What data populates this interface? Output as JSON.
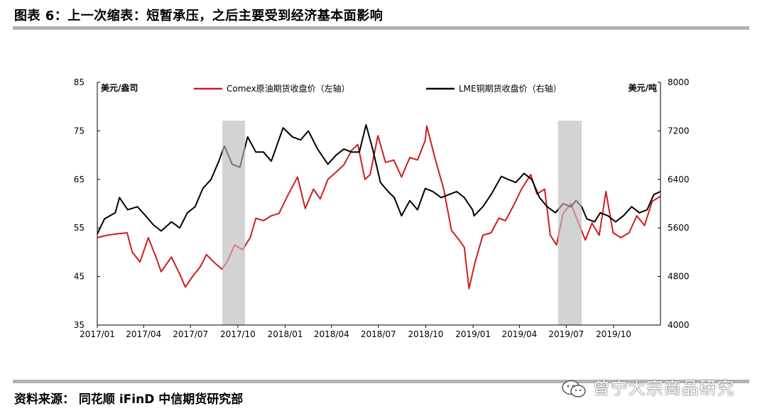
{
  "figure": {
    "title": "图表 6：上一次缩表：短暂承压，之后主要受到经济基本面影响",
    "source": "资料来源： 同花顺 iFinD 中信期货研究部",
    "watermark": "曾宁大宗商品研究"
  },
  "chart_data": {
    "type": "line",
    "x_range": [
      "2017-01-01",
      "2019-12-31"
    ],
    "x_ticks": [
      "2017/01",
      "2017/04",
      "2017/07",
      "2017/10",
      "2018/01",
      "2018/04",
      "2018/07",
      "2018/10",
      "2019/01",
      "2019/04",
      "2019/07",
      "2019/10"
    ],
    "left_axis": {
      "unit": "美元/盎司",
      "range": [
        35,
        85
      ],
      "ticks": [
        "35",
        "45",
        "55",
        "65",
        "75",
        "85"
      ]
    },
    "right_axis": {
      "unit": "美元/吨",
      "range": [
        4000,
        8000
      ],
      "ticks": [
        "4000",
        "4800",
        "5600",
        "6400",
        "7200",
        "8000"
      ]
    },
    "shaded_periods": [
      {
        "start": "2017-09-01",
        "end": "2017-10-15"
      },
      {
        "start": "2019-06-15",
        "end": "2019-07-31"
      }
    ],
    "legend_placement": "top",
    "series": [
      {
        "name": "Comex原油期货收盘价（左轴）",
        "axis": "left",
        "color": "#cc1f1f",
        "points": [
          [
            "2017-01-01",
            53.0
          ],
          [
            "2017-01-20",
            53.5
          ],
          [
            "2017-02-10",
            53.8
          ],
          [
            "2017-02-28",
            54.0
          ],
          [
            "2017-03-10",
            50.0
          ],
          [
            "2017-03-25",
            48.0
          ],
          [
            "2017-04-10",
            53.0
          ],
          [
            "2017-04-25",
            49.0
          ],
          [
            "2017-05-05",
            46.0
          ],
          [
            "2017-05-25",
            49.0
          ],
          [
            "2017-06-10",
            45.5
          ],
          [
            "2017-06-21",
            42.8
          ],
          [
            "2017-07-05",
            45.0
          ],
          [
            "2017-07-20",
            47.0
          ],
          [
            "2017-08-01",
            49.5
          ],
          [
            "2017-08-15",
            48.0
          ],
          [
            "2017-08-31",
            46.5
          ],
          [
            "2017-09-10",
            48.0
          ],
          [
            "2017-09-25",
            51.5
          ],
          [
            "2017-10-10",
            50.5
          ],
          [
            "2017-10-25",
            53.0
          ],
          [
            "2017-11-05",
            57.0
          ],
          [
            "2017-11-20",
            56.5
          ],
          [
            "2017-12-05",
            57.5
          ],
          [
            "2017-12-20",
            58.0
          ],
          [
            "2018-01-05",
            61.5
          ],
          [
            "2018-01-25",
            65.5
          ],
          [
            "2018-02-09",
            59.0
          ],
          [
            "2018-02-25",
            63.0
          ],
          [
            "2018-03-10",
            61.0
          ],
          [
            "2018-03-25",
            65.0
          ],
          [
            "2018-04-10",
            66.5
          ],
          [
            "2018-04-25",
            68.0
          ],
          [
            "2018-05-10",
            71.0
          ],
          [
            "2018-05-22",
            72.2
          ],
          [
            "2018-06-05",
            65.0
          ],
          [
            "2018-06-15",
            66.0
          ],
          [
            "2018-06-30",
            74.0
          ],
          [
            "2018-07-15",
            68.5
          ],
          [
            "2018-07-31",
            69.0
          ],
          [
            "2018-08-15",
            65.5
          ],
          [
            "2018-08-31",
            69.5
          ],
          [
            "2018-09-15",
            69.0
          ],
          [
            "2018-09-30",
            73.0
          ],
          [
            "2018-10-03",
            76.0
          ],
          [
            "2018-10-20",
            69.0
          ],
          [
            "2018-11-05",
            63.0
          ],
          [
            "2018-11-20",
            54.5
          ],
          [
            "2018-12-05",
            52.5
          ],
          [
            "2018-12-15",
            51.0
          ],
          [
            "2018-12-24",
            42.5
          ],
          [
            "2019-01-05",
            48.0
          ],
          [
            "2019-01-20",
            53.5
          ],
          [
            "2019-02-05",
            54.0
          ],
          [
            "2019-02-20",
            57.0
          ],
          [
            "2019-03-05",
            56.5
          ],
          [
            "2019-03-20",
            59.5
          ],
          [
            "2019-04-05",
            63.0
          ],
          [
            "2019-04-23",
            66.0
          ],
          [
            "2019-05-05",
            62.0
          ],
          [
            "2019-05-20",
            63.0
          ],
          [
            "2019-05-31",
            53.5
          ],
          [
            "2019-06-12",
            51.5
          ],
          [
            "2019-06-25",
            58.0
          ],
          [
            "2019-07-10",
            60.0
          ],
          [
            "2019-07-25",
            56.0
          ],
          [
            "2019-08-07",
            52.5
          ],
          [
            "2019-08-20",
            56.0
          ],
          [
            "2019-09-03",
            53.5
          ],
          [
            "2019-09-16",
            62.5
          ],
          [
            "2019-09-30",
            54.0
          ],
          [
            "2019-10-15",
            53.0
          ],
          [
            "2019-10-31",
            54.0
          ],
          [
            "2019-11-15",
            57.5
          ],
          [
            "2019-11-30",
            55.5
          ],
          [
            "2019-12-15",
            60.5
          ],
          [
            "2019-12-31",
            61.5
          ]
        ]
      },
      {
        "name": "LME铜期货收盘价（右轴）",
        "axis": "right",
        "color": "#000000",
        "points": [
          [
            "2017-01-01",
            5500
          ],
          [
            "2017-01-15",
            5750
          ],
          [
            "2017-02-05",
            5850
          ],
          [
            "2017-02-13",
            6100
          ],
          [
            "2017-03-01",
            5900
          ],
          [
            "2017-03-20",
            5950
          ],
          [
            "2017-04-05",
            5800
          ],
          [
            "2017-04-20",
            5650
          ],
          [
            "2017-05-05",
            5550
          ],
          [
            "2017-05-25",
            5700
          ],
          [
            "2017-06-10",
            5600
          ],
          [
            "2017-06-25",
            5850
          ],
          [
            "2017-07-10",
            5950
          ],
          [
            "2017-07-25",
            6250
          ],
          [
            "2017-08-10",
            6400
          ],
          [
            "2017-08-25",
            6700
          ],
          [
            "2017-09-05",
            6950
          ],
          [
            "2017-09-20",
            6650
          ],
          [
            "2017-10-05",
            6600
          ],
          [
            "2017-10-20",
            7100
          ],
          [
            "2017-11-05",
            6850
          ],
          [
            "2017-11-20",
            6850
          ],
          [
            "2017-12-05",
            6700
          ],
          [
            "2017-12-28",
            7250
          ],
          [
            "2018-01-15",
            7100
          ],
          [
            "2018-01-31",
            7050
          ],
          [
            "2018-02-15",
            7200
          ],
          [
            "2018-03-05",
            6900
          ],
          [
            "2018-03-25",
            6650
          ],
          [
            "2018-04-10",
            6800
          ],
          [
            "2018-04-25",
            6900
          ],
          [
            "2018-05-10",
            6850
          ],
          [
            "2018-05-25",
            6850
          ],
          [
            "2018-06-07",
            7300
          ],
          [
            "2018-06-20",
            6900
          ],
          [
            "2018-07-05",
            6350
          ],
          [
            "2018-07-20",
            6200
          ],
          [
            "2018-08-01",
            6100
          ],
          [
            "2018-08-15",
            5800
          ],
          [
            "2018-08-31",
            6050
          ],
          [
            "2018-09-15",
            5900
          ],
          [
            "2018-09-30",
            6250
          ],
          [
            "2018-10-15",
            6200
          ],
          [
            "2018-10-31",
            6100
          ],
          [
            "2018-11-15",
            6150
          ],
          [
            "2018-11-30",
            6200
          ],
          [
            "2018-12-15",
            6100
          ],
          [
            "2018-12-31",
            5900
          ],
          [
            "2019-01-03",
            5800
          ],
          [
            "2019-01-20",
            5950
          ],
          [
            "2019-02-05",
            6150
          ],
          [
            "2019-02-25",
            6450
          ],
          [
            "2019-03-10",
            6400
          ],
          [
            "2019-03-25",
            6350
          ],
          [
            "2019-04-10",
            6500
          ],
          [
            "2019-04-25",
            6400
          ],
          [
            "2019-05-10",
            6100
          ],
          [
            "2019-05-25",
            5950
          ],
          [
            "2019-06-10",
            5850
          ],
          [
            "2019-06-25",
            6000
          ],
          [
            "2019-07-10",
            5950
          ],
          [
            "2019-07-20",
            6050
          ],
          [
            "2019-07-31",
            5950
          ],
          [
            "2019-08-10",
            5750
          ],
          [
            "2019-08-25",
            5700
          ],
          [
            "2019-09-05",
            5850
          ],
          [
            "2019-09-20",
            5800
          ],
          [
            "2019-10-05",
            5700
          ],
          [
            "2019-10-20",
            5800
          ],
          [
            "2019-11-05",
            5950
          ],
          [
            "2019-11-20",
            5850
          ],
          [
            "2019-12-05",
            5900
          ],
          [
            "2019-12-18",
            6150
          ],
          [
            "2019-12-31",
            6200
          ]
        ]
      }
    ]
  }
}
